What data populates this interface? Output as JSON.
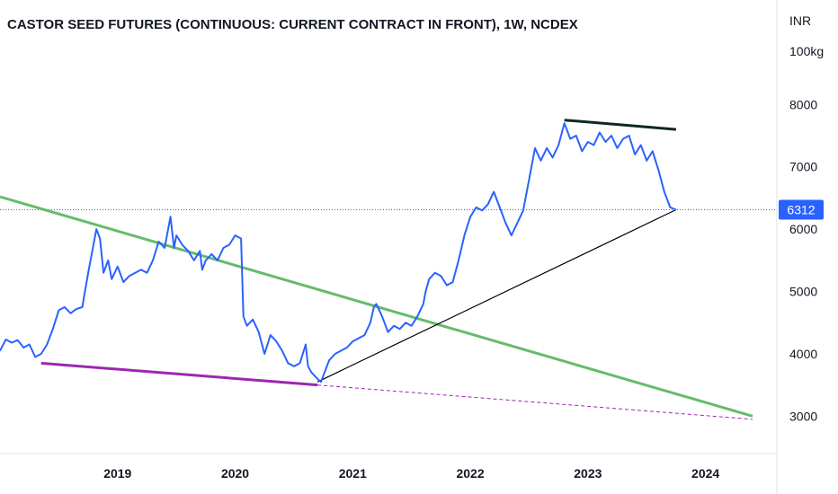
{
  "chart_data": {
    "type": "line",
    "title": "CASTOR SEED FUTURES (CONTINUOUS: CURRENT CONTRACT IN FRONT), 1W, NCDEX",
    "currency": "INR",
    "unit": "100kg",
    "x_ticks": [
      "2019",
      "2020",
      "2021",
      "2022",
      "2023",
      "2024"
    ],
    "y_ticks": [
      3000,
      4000,
      5000,
      6000,
      7000,
      8000
    ],
    "ylim": [
      2400,
      9100
    ],
    "xlim": [
      2018.0,
      2024.5
    ],
    "last_value": 6312,
    "colors": {
      "price": "#2962ff",
      "last_price_line": "#2962ff",
      "badge": "#2962ff",
      "green_trendline": "#66bb6a",
      "purple_trendline": "#9c27b0",
      "black_trendline": "#000000",
      "top_trendline": "#0d2a1b"
    },
    "series": [
      {
        "values": [
          [
            2018.0,
            4050
          ],
          [
            2018.05,
            4230
          ],
          [
            2018.1,
            4180
          ],
          [
            2018.15,
            4220
          ],
          [
            2018.2,
            4100
          ],
          [
            2018.25,
            4150
          ],
          [
            2018.3,
            3950
          ],
          [
            2018.35,
            4000
          ],
          [
            2018.4,
            4150
          ],
          [
            2018.45,
            4400
          ],
          [
            2018.5,
            4700
          ],
          [
            2018.55,
            4750
          ],
          [
            2018.6,
            4650
          ],
          [
            2018.65,
            4720
          ],
          [
            2018.7,
            4750
          ],
          [
            2018.75,
            5300
          ],
          [
            2018.8,
            5800
          ],
          [
            2018.82,
            6000
          ],
          [
            2018.85,
            5850
          ],
          [
            2018.88,
            5300
          ],
          [
            2018.92,
            5500
          ],
          [
            2018.95,
            5200
          ],
          [
            2019.0,
            5400
          ],
          [
            2019.05,
            5150
          ],
          [
            2019.1,
            5250
          ],
          [
            2019.15,
            5300
          ],
          [
            2019.2,
            5350
          ],
          [
            2019.25,
            5300
          ],
          [
            2019.3,
            5500
          ],
          [
            2019.35,
            5800
          ],
          [
            2019.4,
            5700
          ],
          [
            2019.45,
            6200
          ],
          [
            2019.48,
            5700
          ],
          [
            2019.5,
            5900
          ],
          [
            2019.55,
            5750
          ],
          [
            2019.6,
            5650
          ],
          [
            2019.65,
            5500
          ],
          [
            2019.7,
            5650
          ],
          [
            2019.72,
            5350
          ],
          [
            2019.75,
            5500
          ],
          [
            2019.8,
            5600
          ],
          [
            2019.85,
            5500
          ],
          [
            2019.9,
            5700
          ],
          [
            2019.95,
            5750
          ],
          [
            2020.0,
            5900
          ],
          [
            2020.05,
            5850
          ],
          [
            2020.07,
            4600
          ],
          [
            2020.1,
            4450
          ],
          [
            2020.15,
            4550
          ],
          [
            2020.2,
            4350
          ],
          [
            2020.25,
            4000
          ],
          [
            2020.3,
            4300
          ],
          [
            2020.35,
            4200
          ],
          [
            2020.4,
            4050
          ],
          [
            2020.45,
            3850
          ],
          [
            2020.5,
            3800
          ],
          [
            2020.55,
            3850
          ],
          [
            2020.6,
            4150
          ],
          [
            2020.62,
            3800
          ],
          [
            2020.65,
            3700
          ],
          [
            2020.7,
            3600
          ],
          [
            2020.73,
            3550
          ],
          [
            2020.75,
            3650
          ],
          [
            2020.8,
            3900
          ],
          [
            2020.85,
            4000
          ],
          [
            2020.9,
            4050
          ],
          [
            2020.95,
            4100
          ],
          [
            2021.0,
            4200
          ],
          [
            2021.05,
            4250
          ],
          [
            2021.1,
            4300
          ],
          [
            2021.15,
            4500
          ],
          [
            2021.18,
            4750
          ],
          [
            2021.2,
            4800
          ],
          [
            2021.25,
            4600
          ],
          [
            2021.3,
            4350
          ],
          [
            2021.35,
            4450
          ],
          [
            2021.4,
            4400
          ],
          [
            2021.45,
            4500
          ],
          [
            2021.5,
            4450
          ],
          [
            2021.55,
            4600
          ],
          [
            2021.6,
            4800
          ],
          [
            2021.62,
            5000
          ],
          [
            2021.65,
            5200
          ],
          [
            2021.7,
            5300
          ],
          [
            2021.75,
            5250
          ],
          [
            2021.8,
            5100
          ],
          [
            2021.85,
            5150
          ],
          [
            2021.9,
            5500
          ],
          [
            2021.95,
            5900
          ],
          [
            2022.0,
            6200
          ],
          [
            2022.05,
            6350
          ],
          [
            2022.1,
            6300
          ],
          [
            2022.15,
            6400
          ],
          [
            2022.2,
            6600
          ],
          [
            2022.25,
            6350
          ],
          [
            2022.3,
            6100
          ],
          [
            2022.35,
            5900
          ],
          [
            2022.4,
            6100
          ],
          [
            2022.45,
            6300
          ],
          [
            2022.5,
            6800
          ],
          [
            2022.55,
            7300
          ],
          [
            2022.6,
            7100
          ],
          [
            2022.65,
            7300
          ],
          [
            2022.7,
            7150
          ],
          [
            2022.75,
            7350
          ],
          [
            2022.8,
            7700
          ],
          [
            2022.85,
            7450
          ],
          [
            2022.9,
            7500
          ],
          [
            2022.95,
            7250
          ],
          [
            2023.0,
            7400
          ],
          [
            2023.05,
            7350
          ],
          [
            2023.1,
            7550
          ],
          [
            2023.15,
            7400
          ],
          [
            2023.2,
            7500
          ],
          [
            2023.25,
            7300
          ],
          [
            2023.3,
            7450
          ],
          [
            2023.35,
            7500
          ],
          [
            2023.4,
            7200
          ],
          [
            2023.45,
            7350
          ],
          [
            2023.5,
            7100
          ],
          [
            2023.55,
            7250
          ],
          [
            2023.6,
            6950
          ],
          [
            2023.65,
            6600
          ],
          [
            2023.7,
            6350
          ],
          [
            2023.75,
            6312
          ]
        ]
      }
    ],
    "trendlines": [
      {
        "from": [
          2018.0,
          6520
        ],
        "to": [
          2024.4,
          3000
        ]
      },
      {
        "from": [
          2018.35,
          3850
        ],
        "to": [
          2020.7,
          3500
        ]
      },
      {
        "from": [
          2020.7,
          3500
        ],
        "to": [
          2024.4,
          2950
        ]
      },
      {
        "from": [
          2020.7,
          3550
        ],
        "to": [
          2023.75,
          6312
        ]
      },
      {
        "from": [
          2022.8,
          7750
        ],
        "to": [
          2023.75,
          7600
        ]
      }
    ]
  }
}
